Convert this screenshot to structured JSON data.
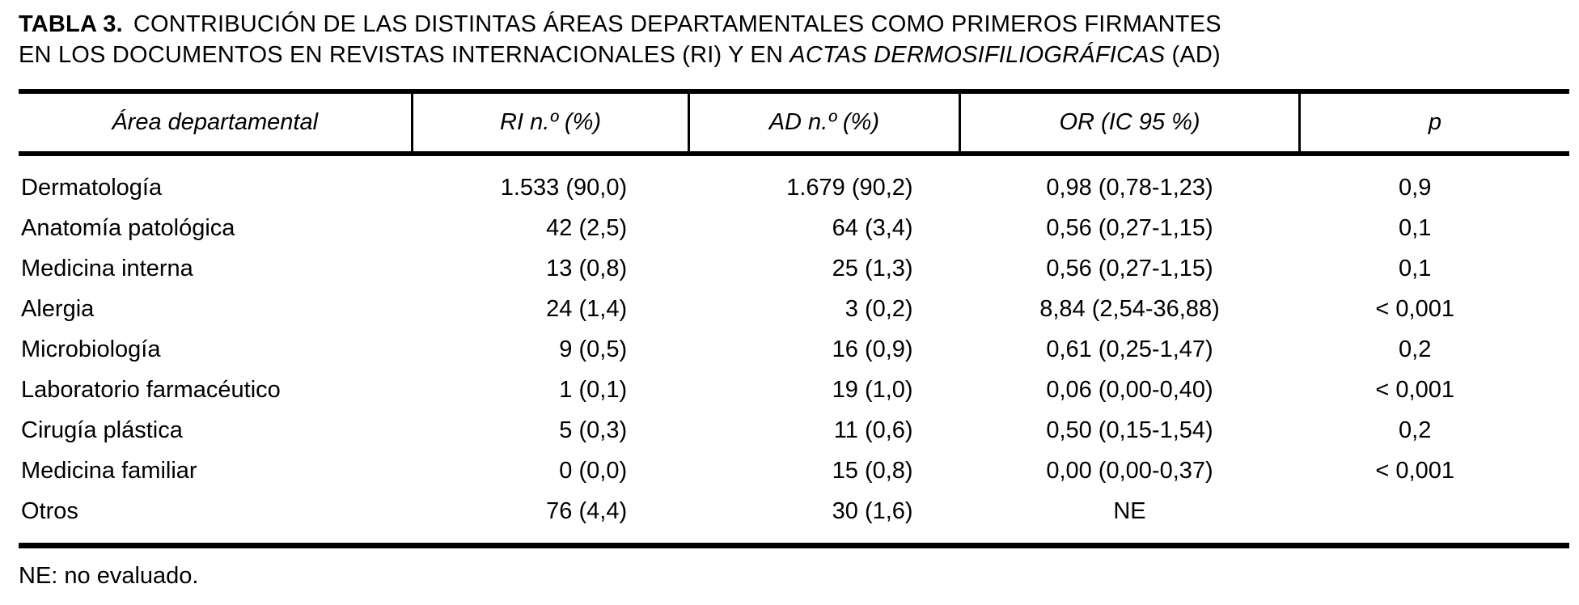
{
  "title": {
    "label": "TABLA 3.",
    "line1": "CONTRIBUCIÓN DE LAS DISTINTAS ÁREAS DEPARTAMENTALES COMO PRIMEROS FIRMANTES",
    "line2_pre": "EN LOS DOCUMENTOS EN REVISTAS INTERNACIONALES (RI) Y EN ",
    "line2_italic": "ACTAS DERMOSIFILIOGRÁFICAS",
    "line2_post": " (AD)"
  },
  "table": {
    "columns": [
      {
        "label": "Área departamental"
      },
      {
        "label": "RI n.º (%)"
      },
      {
        "label": "AD n.º (%)"
      },
      {
        "label": "OR (IC 95 %)"
      },
      {
        "label": "p"
      }
    ],
    "rows": [
      {
        "area": "Dermatología",
        "ri": "1.533 (90,0)",
        "ad": "1.679 (90,2)",
        "or": "0,98 (0,78-1,23)",
        "p": "0,9"
      },
      {
        "area": "Anatomía patológica",
        "ri": "42 (2,5)",
        "ad": "64 (3,4)",
        "or": "0,56 (0,27-1,15)",
        "p": "0,1"
      },
      {
        "area": "Medicina interna",
        "ri": "13 (0,8)",
        "ad": "25 (1,3)",
        "or": "0,56 (0,27-1,15)",
        "p": "0,1"
      },
      {
        "area": "Alergia",
        "ri": "24 (1,4)",
        "ad": "3 (0,2)",
        "or": "8,84 (2,54-36,88)",
        "p": "< 0,001"
      },
      {
        "area": "Microbiología",
        "ri": "9 (0,5)",
        "ad": "16 (0,9)",
        "or": "0,61 (0,25-1,47)",
        "p": "0,2"
      },
      {
        "area": "Laboratorio farmacéutico",
        "ri": "1 (0,1)",
        "ad": "19 (1,0)",
        "or": "0,06 (0,00-0,40)",
        "p": "< 0,001"
      },
      {
        "area": "Cirugía plástica",
        "ri": "5 (0,3)",
        "ad": "11 (0,6)",
        "or": "0,50 (0,15-1,54)",
        "p": "0,2"
      },
      {
        "area": "Medicina familiar",
        "ri": "0 (0,0)",
        "ad": "15 (0,8)",
        "or": "0,00 (0,00-0,37)",
        "p": "< 0,001"
      },
      {
        "area": "Otros",
        "ri": "76 (4,4)",
        "ad": "30 (1,6)",
        "or": "NE",
        "p": ""
      }
    ]
  },
  "footnote": "NE: no evaluado.",
  "colors": {
    "background": "#ffffff",
    "text": "#000000",
    "rule": "#000000"
  }
}
